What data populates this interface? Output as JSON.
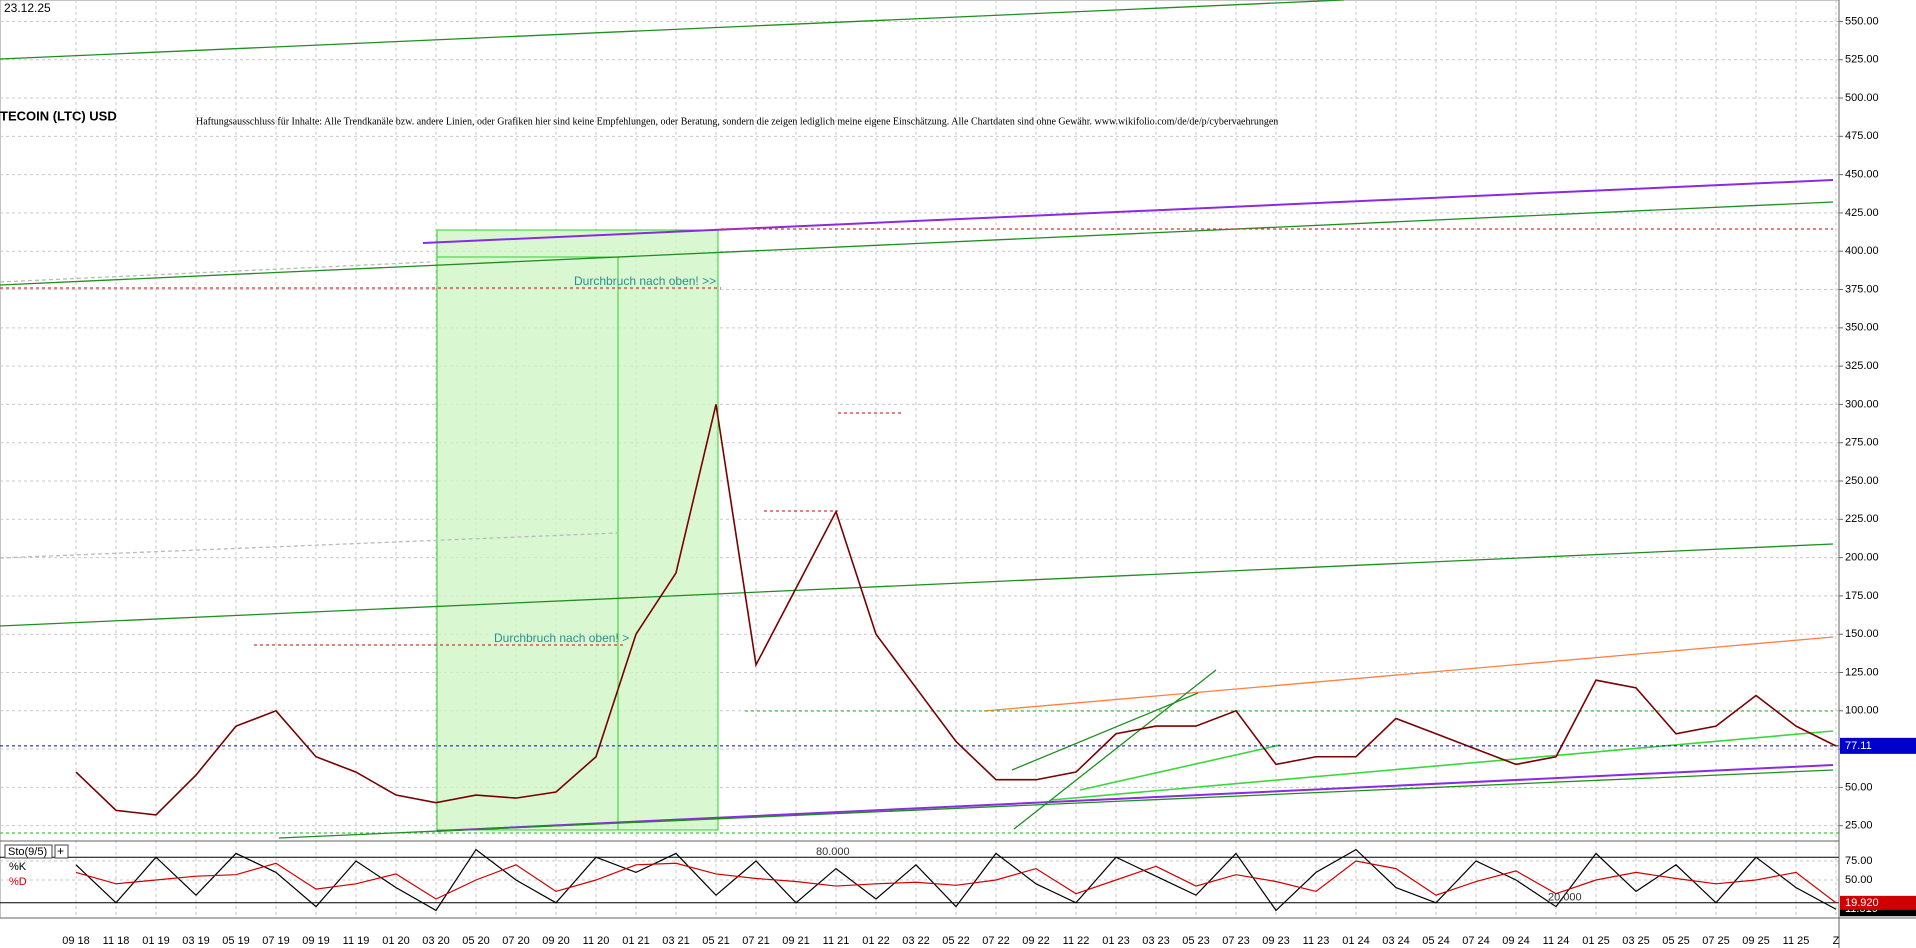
{
  "chart_data": [
    {
      "type": "line",
      "title": "TECOIN (LTC) USD",
      "timestamp": "23.12.25",
      "subtitle": "Haftungsausschluss für Inhalte: Alle Trendkanäle bzw. andere Linien, oder Grafiken hier sind keine Empfehlungen, oder Beratung, sondern die zeigen lediglich meine eigene Einschätzung. Alle Chartdaten sind ohne Gewähr.  www.wikifolio.com/de/de/p/cybervaehrungen",
      "annotations": [
        "Durchbruch nach oben! >>",
        "Durchbruch nach oben! >"
      ],
      "categories": [
        "09 18",
        "11 18",
        "01 19",
        "03 19",
        "05 19",
        "07 19",
        "09 19",
        "11 19",
        "01 20",
        "03 20",
        "05 20",
        "07 20",
        "09 20",
        "11 20",
        "01 21",
        "03 21",
        "05 21",
        "07 21",
        "09 21",
        "11 21",
        "01 22",
        "03 22",
        "05 22",
        "07 22",
        "09 22",
        "11 22",
        "01 23",
        "03 23",
        "05 23",
        "07 23",
        "09 23",
        "11 23",
        "01 24",
        "03 24",
        "05 24",
        "07 24",
        "09 24",
        "11 24",
        "01 25",
        "03 25",
        "05 25",
        "07 25",
        "09 25",
        "11 25",
        "Z"
      ],
      "values": [
        60,
        35,
        32,
        58,
        90,
        100,
        70,
        60,
        45,
        40,
        45,
        43,
        47,
        70,
        150,
        190,
        300,
        130,
        180,
        230,
        150,
        115,
        80,
        55,
        55,
        60,
        85,
        90,
        90,
        100,
        65,
        70,
        70,
        95,
        85,
        75,
        65,
        70,
        120,
        115,
        85,
        90,
        110,
        90,
        77
      ],
      "color": "#7a0000",
      "last_price": 77.11,
      "ylim": [
        15,
        564
      ],
      "yticks": [
        {
          "value": 25,
          "label": "25.00"
        },
        {
          "value": 50,
          "label": "50.00"
        },
        {
          "value": 75,
          "label": "75.00"
        },
        {
          "value": 100,
          "label": "100.00"
        },
        {
          "value": 125,
          "label": "125.00"
        },
        {
          "value": 150,
          "label": "150.00"
        },
        {
          "value": 175,
          "label": "175.00"
        },
        {
          "value": 200,
          "label": "200.00"
        },
        {
          "value": 225,
          "label": "225.00"
        },
        {
          "value": 250,
          "label": "250.00"
        },
        {
          "value": 275,
          "label": "275.00"
        },
        {
          "value": 300,
          "label": "300.00"
        },
        {
          "value": 325,
          "label": "325.00"
        },
        {
          "value": 350,
          "label": "350.00"
        },
        {
          "value": 375,
          "label": "375.00"
        },
        {
          "value": 400,
          "label": "400.00"
        },
        {
          "value": 425,
          "label": "425.00"
        },
        {
          "value": 450,
          "label": "450.00"
        },
        {
          "value": 475,
          "label": "475.00"
        },
        {
          "value": 500,
          "label": "500.00"
        },
        {
          "value": 525,
          "label": "525.00"
        },
        {
          "value": 550,
          "label": "550.00"
        }
      ],
      "grid": true
    },
    {
      "type": "line",
      "title": "Sto(9/5)",
      "series": [
        {
          "name": "%K",
          "color": "#000000",
          "values": [
            70,
            20,
            80,
            30,
            85,
            60,
            15,
            75,
            40,
            10,
            90,
            50,
            20,
            80,
            60,
            85,
            30,
            75,
            20,
            65,
            25,
            70,
            15,
            85,
            45,
            20,
            80,
            55,
            30,
            85,
            10,
            60,
            90,
            40,
            20,
            75,
            50,
            15,
            85,
            35,
            70,
            20,
            80,
            40,
            11.519
          ]
        },
        {
          "name": "%D",
          "color": "#d00000",
          "values": [
            60,
            45,
            50,
            55,
            57,
            72,
            38,
            45,
            58,
            25,
            50,
            70,
            35,
            50,
            70,
            72,
            58,
            52,
            48,
            42,
            45,
            47,
            43,
            50,
            65,
            32,
            50,
            68,
            42,
            57,
            48,
            35,
            75,
            65,
            30,
            48,
            62,
            32,
            50,
            60,
            52,
            45,
            50,
            60,
            19.92
          ]
        }
      ],
      "last_labels": [
        {
          "value": 11.519,
          "label": "11.519"
        },
        {
          "value": 19.92,
          "label": "19.920"
        }
      ],
      "levels": [
        {
          "value": 80,
          "label": "80.000"
        },
        {
          "value": 20,
          "label": "20.000"
        }
      ],
      "ylim": [
        0,
        100
      ],
      "yticks": [
        {
          "value": 50,
          "label": "50.00"
        },
        {
          "value": 75,
          "label": "75.00"
        }
      ]
    }
  ]
}
